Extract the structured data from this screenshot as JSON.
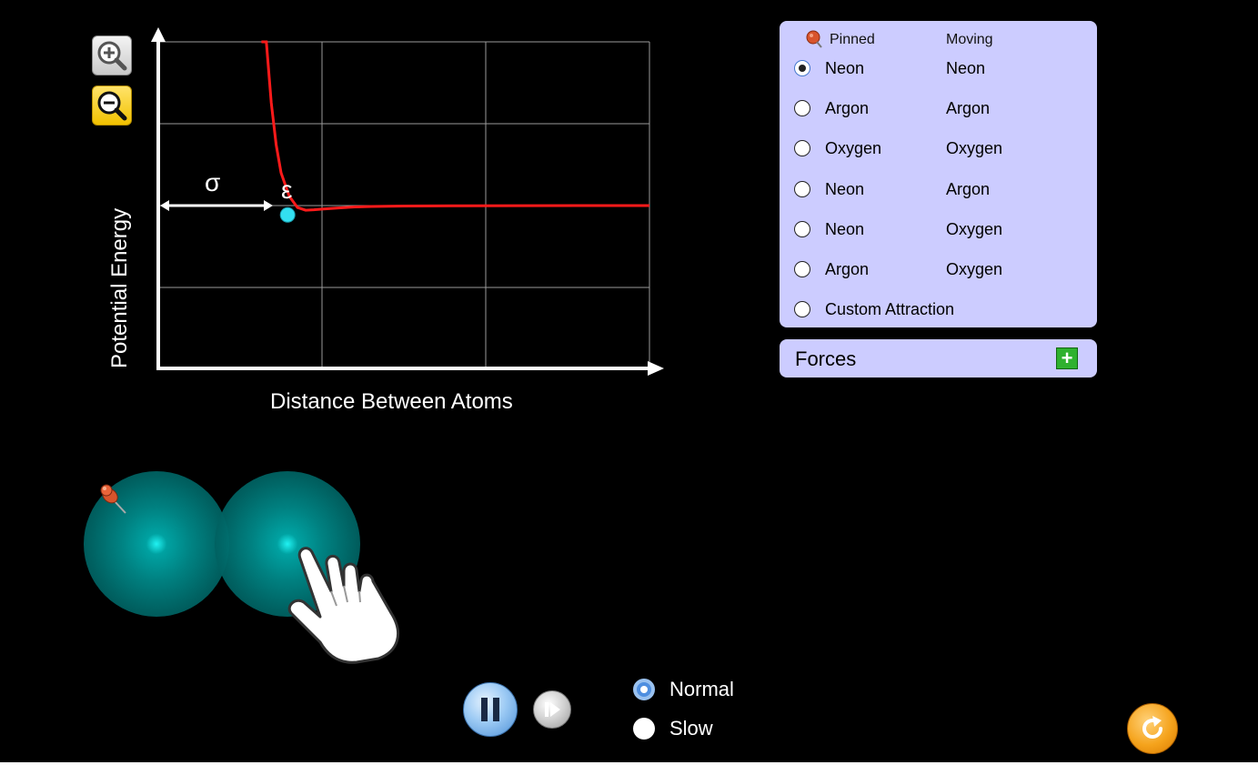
{
  "zoom": {
    "in_icon": "zoom-in-icon",
    "out_icon": "zoom-out-icon"
  },
  "chart": {
    "y_axis_label": "Potential Energy",
    "x_axis_label": "Distance Between Atoms",
    "sigma_label": "σ",
    "epsilon_label": "ε",
    "curve_color": "#ff1a1a",
    "marker_color": "#33e0f0"
  },
  "chart_data": {
    "type": "line",
    "title": "",
    "xlabel": "Distance Between Atoms",
    "ylabel": "Potential Energy",
    "grid": true,
    "annotations": [
      "σ",
      "ε"
    ],
    "series": [
      {
        "x": [
          0.63,
          0.66,
          0.69,
          0.72,
          0.75,
          0.8,
          0.85,
          0.9,
          0.95,
          1.0,
          1.1,
          1.2,
          1.3,
          1.5,
          1.8,
          2.2,
          3.0
        ],
        "y": [
          3.5,
          3.5,
          2.2,
          1.3,
          0.7,
          0.2,
          -0.04,
          -0.1,
          -0.09,
          -0.075,
          -0.05,
          -0.03,
          -0.02,
          -0.01,
          -0.005,
          -0.002,
          0
        ]
      }
    ],
    "marker": {
      "x": 0.79,
      "y": -0.12
    }
  },
  "atom_selector": {
    "pinned_header": "Pinned",
    "moving_header": "Moving",
    "selected_index": 0,
    "options": [
      {
        "pinned": "Neon",
        "moving": "Neon"
      },
      {
        "pinned": "Argon",
        "moving": "Argon"
      },
      {
        "pinned": "Oxygen",
        "moving": "Oxygen"
      },
      {
        "pinned": "Neon",
        "moving": "Argon"
      },
      {
        "pinned": "Neon",
        "moving": "Oxygen"
      },
      {
        "pinned": "Argon",
        "moving": "Oxygen"
      },
      {
        "pinned": "Custom Attraction",
        "moving": ""
      }
    ]
  },
  "forces": {
    "label": "Forces",
    "expand_icon": "plus-icon"
  },
  "playback": {
    "pause_icon": "pause-icon",
    "step_icon": "step-forward-icon",
    "speed_options": [
      "Normal",
      "Slow"
    ],
    "speed_selected": "Normal"
  },
  "reset": {
    "icon": "reset-icon"
  },
  "colors": {
    "panel_bg": "#ccccff",
    "background": "#000000",
    "atom": "#00cccc"
  }
}
